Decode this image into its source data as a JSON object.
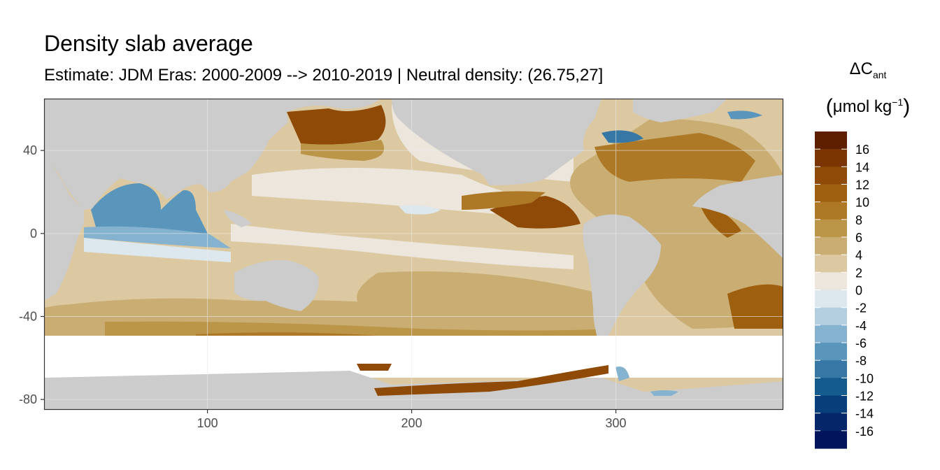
{
  "title": "Density slab average",
  "subtitle": "Estimate: JDM Eras: 2000-2009 --> 2010-2019 | Neutral density: (26.75,27]",
  "legend": {
    "title_main": "ΔC",
    "title_sub": "ant",
    "unit_open": "(",
    "unit_text": "μmol kg",
    "unit_sup": "−1",
    "unit_close": ")",
    "colors": [
      "#5e1f00",
      "#7a3503",
      "#8e4a06",
      "#9e600f",
      "#ae7927",
      "#bb9548",
      "#c9ad72",
      "#dcc9a2",
      "#ece6dc",
      "#dde8ee",
      "#b4cfe0",
      "#84b2cf",
      "#5a96bc",
      "#3677a5",
      "#155c8e",
      "#063f7a",
      "#04276a",
      "#02145c"
    ],
    "labels": [
      "16",
      "14",
      "12",
      "10",
      "8",
      "6",
      "4",
      "2",
      "0",
      "-2",
      "-4",
      "-6",
      "-8",
      "-10",
      "-12",
      "-14",
      "-16"
    ]
  },
  "map_data": {
    "type": "heatmap",
    "x_axis": {
      "ticks": [
        100,
        200,
        300
      ],
      "labels": [
        "100",
        "200",
        "300"
      ],
      "range": [
        20,
        382
      ]
    },
    "y_axis": {
      "ticks": [
        40,
        0,
        -40,
        -80
      ],
      "labels": [
        "40",
        "0",
        "-40",
        "-80"
      ],
      "range": [
        -85,
        65
      ]
    },
    "land_color": "#cccccc",
    "panel_border_color": "#333333"
  }
}
